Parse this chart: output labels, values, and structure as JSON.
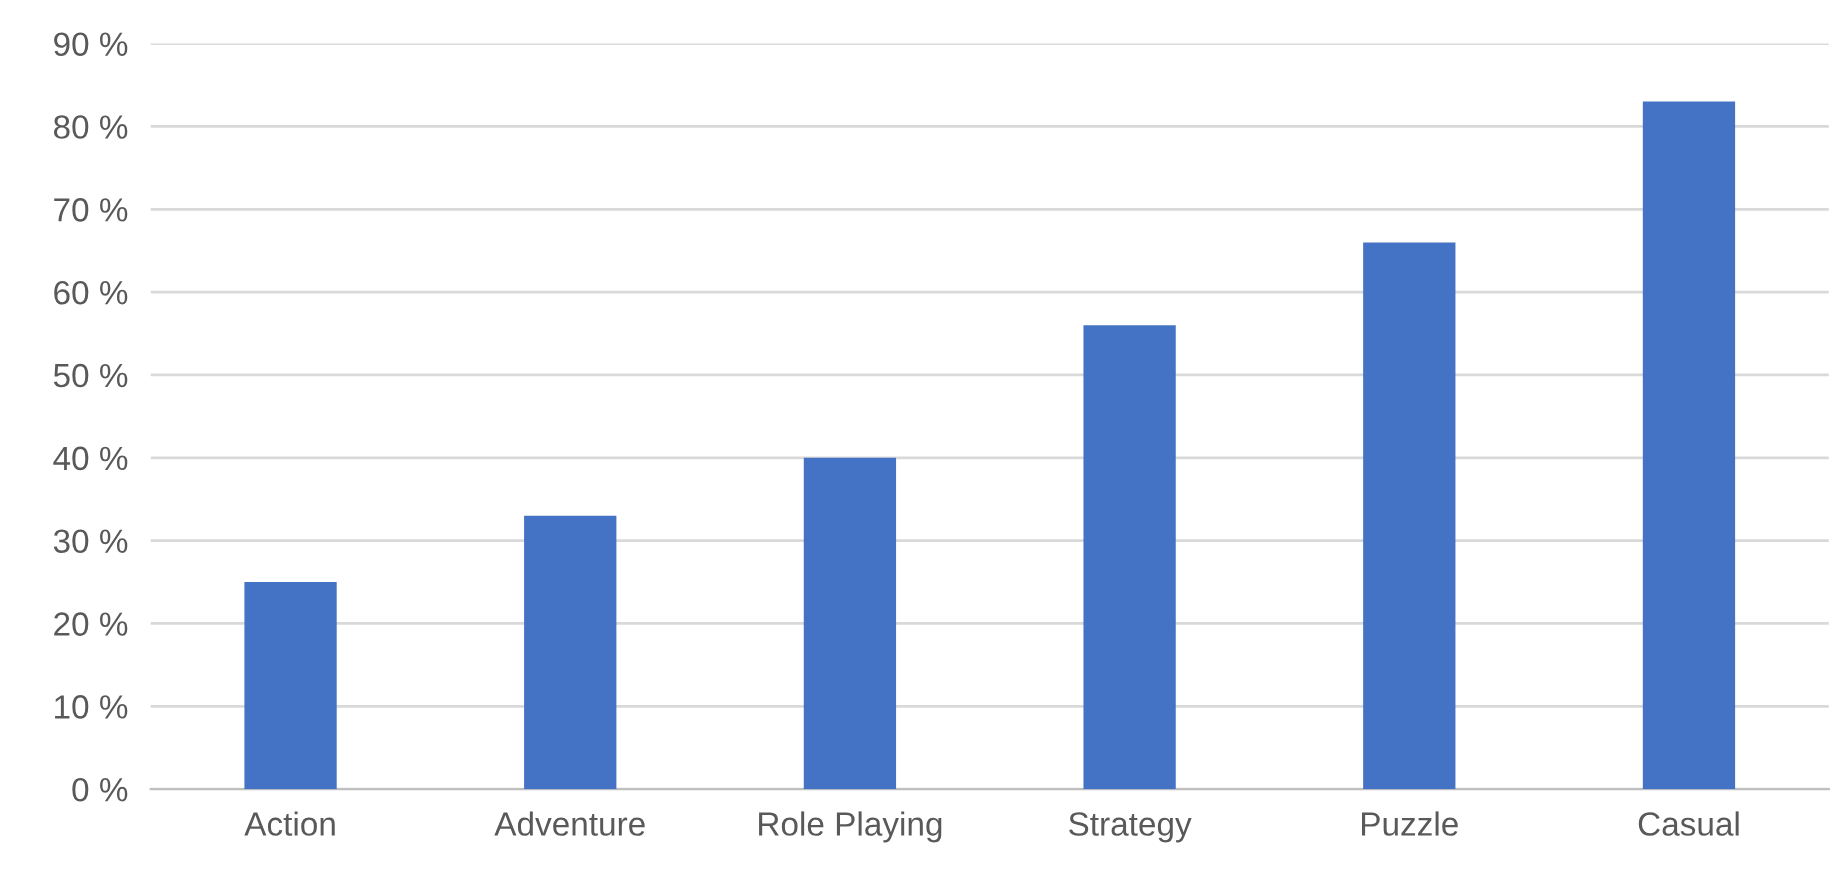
{
  "chart_data": {
    "type": "bar",
    "categories": [
      "Action",
      "Adventure",
      "Role Playing",
      "Strategy",
      "Puzzle",
      "Casual"
    ],
    "values": [
      25,
      33,
      40,
      56,
      66,
      83
    ],
    "color": "#4472c4",
    "ylim": [
      0,
      90
    ],
    "yticks": [
      {
        "value": 0,
        "label": "0 %"
      },
      {
        "value": 10,
        "label": "10 %"
      },
      {
        "value": 20,
        "label": "20 %"
      },
      {
        "value": 30,
        "label": "30 %"
      },
      {
        "value": 40,
        "label": "40 %"
      },
      {
        "value": 50,
        "label": "50 %"
      },
      {
        "value": 60,
        "label": "60 %"
      },
      {
        "value": 70,
        "label": "70 %"
      },
      {
        "value": 80,
        "label": "80 %"
      },
      {
        "value": 90,
        "label": "90 %"
      }
    ],
    "grid": "y"
  }
}
